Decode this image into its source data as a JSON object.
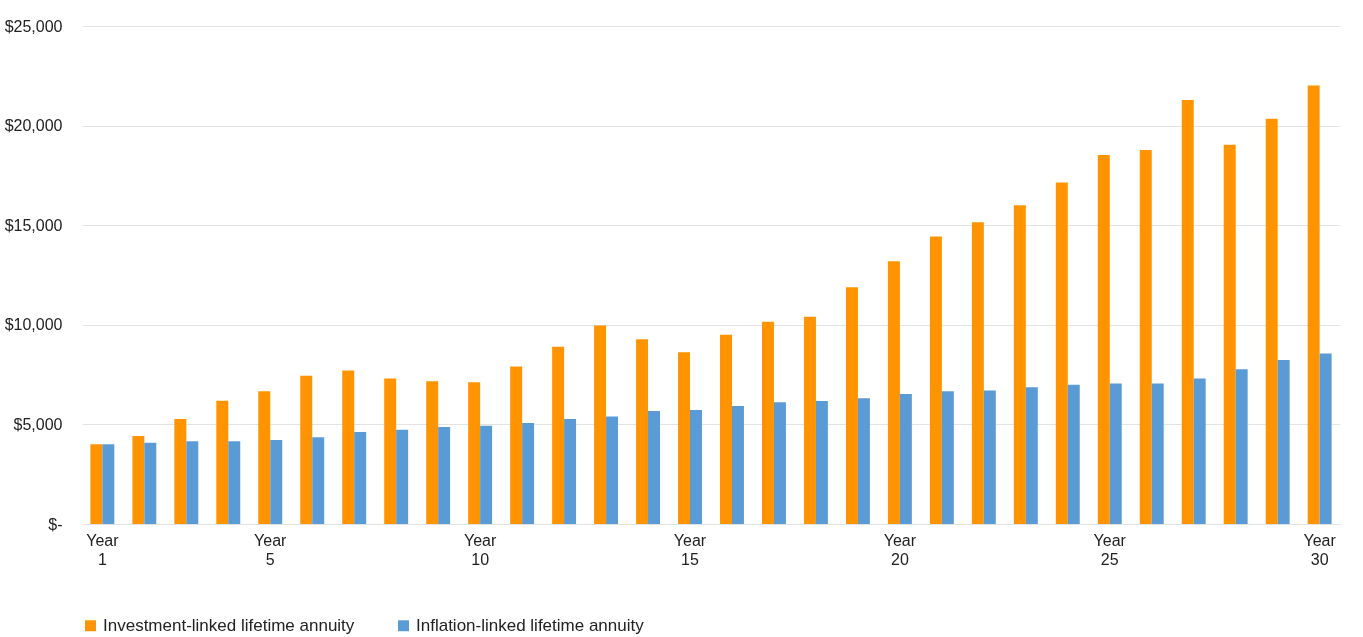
{
  "chart_data": {
    "type": "bar",
    "categories": [
      "Year 1",
      null,
      null,
      null,
      "Year 5",
      null,
      null,
      null,
      null,
      "Year 10",
      null,
      null,
      null,
      null,
      "Year 15",
      null,
      null,
      null,
      null,
      "Year 20",
      null,
      null,
      null,
      null,
      "Year 25",
      null,
      null,
      null,
      null,
      "Year 30"
    ],
    "series": [
      {
        "name": "Investment-linked lifetime annuity",
        "color": "#ff9300",
        "values": [
          4000,
          4420,
          5270,
          6190,
          6660,
          7440,
          7710,
          7310,
          7170,
          7110,
          7910,
          8900,
          9960,
          9280,
          8620,
          9500,
          10150,
          10410,
          11880,
          13190,
          14430,
          15150,
          16000,
          17140,
          18520,
          18780,
          21290,
          19040,
          20350,
          22010
        ]
      },
      {
        "name": "Inflation-linked lifetime annuity",
        "color": "#5b9bd5",
        "values": [
          4000,
          4080,
          4150,
          4150,
          4220,
          4350,
          4620,
          4730,
          4870,
          4930,
          5070,
          5270,
          5400,
          5670,
          5720,
          5920,
          6110,
          6180,
          6310,
          6530,
          6660,
          6700,
          6860,
          6990,
          7050,
          7050,
          7310,
          7770,
          8230,
          8560
        ]
      }
    ],
    "ylim": [
      0,
      25000
    ],
    "yticks": [
      {
        "value": 0,
        "label": "$-"
      },
      {
        "value": 5000,
        "label": "$5,000"
      },
      {
        "value": 10000,
        "label": "$10,000"
      },
      {
        "value": 15000,
        "label": "$15,000"
      },
      {
        "value": 20000,
        "label": "$20,000"
      },
      {
        "value": 25000,
        "label": "$25,000"
      }
    ],
    "grid": "y",
    "legend": "bottom"
  }
}
